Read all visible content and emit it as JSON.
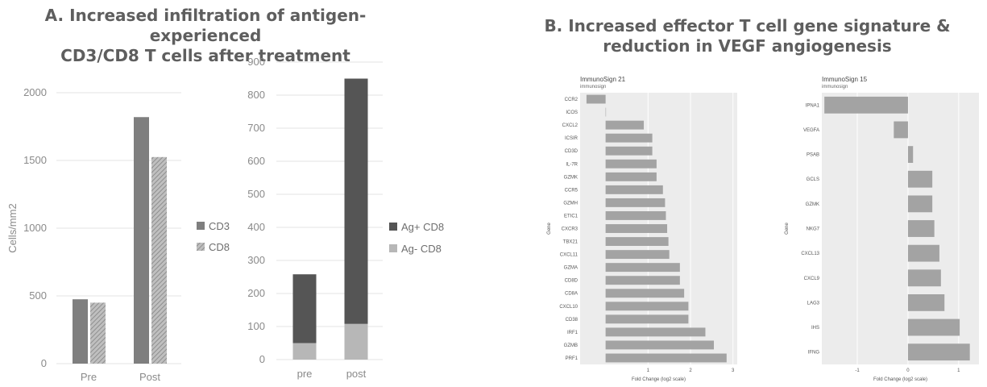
{
  "panel_a": {
    "title_line1": "A. Increased infiltration of antigen-experienced",
    "title_line2": "CD3/CD8 T cells after treatment"
  },
  "panel_b": {
    "title_line1": "B. Increased effector T cell gene signature &",
    "title_line2": "reduction in VEGF angiogenesis"
  },
  "colors": {
    "dark": "#7f7f7f",
    "hatch_bg": "#bfbfbf",
    "hatch_line": "#8f8f8f",
    "ag_pos": "#555555",
    "ag_neg": "#b7b7b7",
    "bar_gray": "#a3a3a3",
    "panel_bg": "#ececec"
  },
  "chart_data": [
    {
      "type": "bar",
      "categories": [
        "Pre",
        "Post"
      ],
      "series": [
        {
          "name": "CD3",
          "values": [
            475,
            1820
          ]
        },
        {
          "name": "CD8",
          "values": [
            450,
            1525
          ]
        }
      ],
      "ylabel": "Cells/mm2",
      "ylim": [
        0,
        2000
      ],
      "yticks": [
        "0",
        "500",
        "1000",
        "1500",
        "2000"
      ],
      "grid": true,
      "legend": "right"
    },
    {
      "type": "bar",
      "stacked": true,
      "categories": [
        "pre",
        "post"
      ],
      "series": [
        {
          "name": "Ag- CD8",
          "values": [
            50,
            108
          ]
        },
        {
          "name": "Ag+ CD8",
          "values": [
            208,
            742
          ]
        }
      ],
      "legend_order": [
        "Ag+ CD8",
        "Ag- CD8"
      ],
      "ylim": [
        0,
        900
      ],
      "yticks": [
        "0",
        "100",
        "200",
        "300",
        "400",
        "500",
        "600",
        "700",
        "800",
        "900"
      ],
      "grid": true,
      "legend": "right"
    },
    {
      "type": "bar",
      "orientation": "horizontal",
      "title": "ImmunoSign 21",
      "subtitle": "immunosign",
      "ylabel": "Gene",
      "xlabel": "Fold Change (log2 scale)",
      "xlim": [
        -0.6,
        3.1
      ],
      "xticks": [
        "1",
        "2",
        "3"
      ],
      "categories": [
        "CCR2",
        "ICOS",
        "CXCL2",
        "ICSIR",
        "CD3D",
        "IL-7R",
        "GZMK",
        "CCR5",
        "GZMH",
        "ETIC1",
        "CXCR3",
        "TBX21",
        "CXCL11",
        "GZMA",
        "CD8D",
        "CD8A",
        "CXCL10",
        "CD38",
        "IRF1",
        "GZMB",
        "PRF1"
      ],
      "values": [
        -0.45,
        0,
        0.9,
        1.1,
        1.1,
        1.2,
        1.2,
        1.35,
        1.4,
        1.42,
        1.45,
        1.48,
        1.5,
        1.75,
        1.75,
        1.85,
        1.95,
        1.95,
        2.35,
        2.55,
        2.85
      ]
    },
    {
      "type": "bar",
      "orientation": "horizontal",
      "title": "ImmunoSign 15",
      "subtitle": "immunosign",
      "ylabel": "Gene",
      "xlabel": "Fold Change (log2 scale)",
      "xlim": [
        -1.7,
        1.4
      ],
      "xticks": [
        "-1",
        "0",
        "1"
      ],
      "categories": [
        "IPNA1",
        "VEGFA",
        "PSAB",
        "GCLS",
        "GZMK",
        "NKG7",
        "CXCL13",
        "CXCL9",
        "LAG3",
        "IHS",
        "IFNG"
      ],
      "values": [
        -1.65,
        -0.28,
        0.1,
        0.48,
        0.48,
        0.52,
        0.62,
        0.65,
        0.72,
        1.02,
        1.22
      ]
    }
  ]
}
